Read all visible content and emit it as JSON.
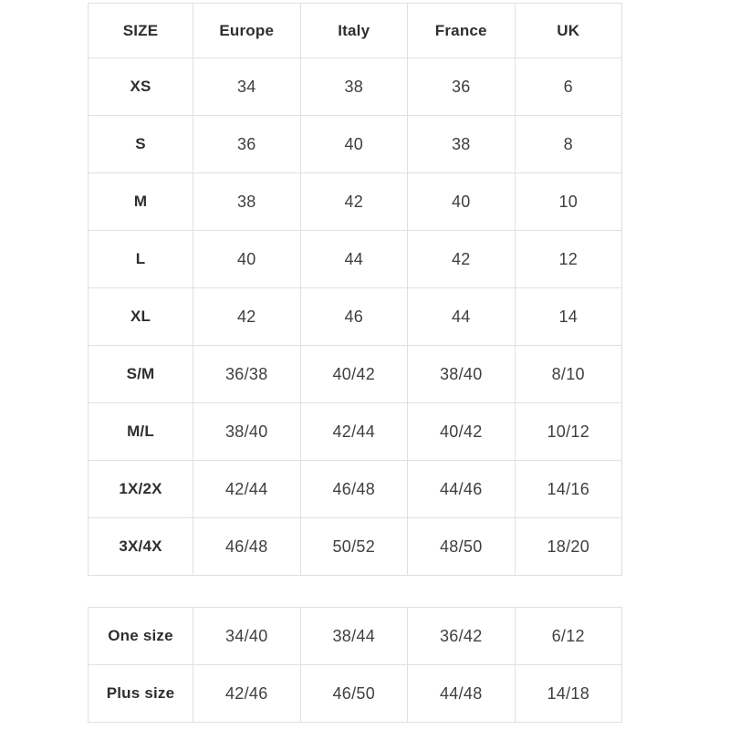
{
  "colors": {
    "background": "#ffffff",
    "border": "#e0e0e0",
    "header_text": "#2e2e2e",
    "value_text": "#3f3f3f"
  },
  "main_table": {
    "headers": [
      "SIZE",
      "Europe",
      "Italy",
      "France",
      "UK"
    ],
    "rows": [
      [
        "XS",
        "34",
        "38",
        "36",
        "6"
      ],
      [
        "S",
        "36",
        "40",
        "38",
        "8"
      ],
      [
        "M",
        "38",
        "42",
        "40",
        "10"
      ],
      [
        "L",
        "40",
        "44",
        "42",
        "12"
      ],
      [
        "XL",
        "42",
        "46",
        "44",
        "14"
      ],
      [
        "S/M",
        "36/38",
        "40/42",
        "38/40",
        "8/10"
      ],
      [
        "M/L",
        "38/40",
        "42/44",
        "40/42",
        "10/12"
      ],
      [
        "1X/2X",
        "42/44",
        "46/48",
        "44/46",
        "14/16"
      ],
      [
        "3X/4X",
        "46/48",
        "50/52",
        "48/50",
        "18/20"
      ]
    ]
  },
  "secondary_table": {
    "rows": [
      [
        "One size",
        "34/40",
        "38/44",
        "36/42",
        "6/12"
      ],
      [
        "Plus size",
        "42/46",
        "46/50",
        "44/48",
        "14/18"
      ]
    ]
  }
}
